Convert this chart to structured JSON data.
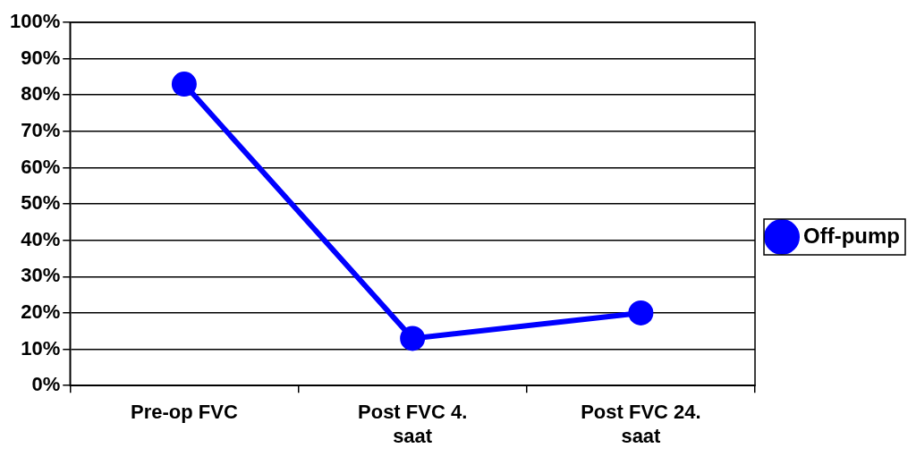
{
  "chart_data": {
    "type": "line",
    "categories": [
      "Pre-op FVC",
      "Post FVC 4. saat",
      "Post FVC 24. saat"
    ],
    "series": [
      {
        "name": "Off-pump",
        "color": "#0000ff",
        "values": [
          83,
          13,
          20
        ]
      }
    ],
    "ylim": [
      0,
      100
    ],
    "yticks": [
      {
        "value": 0,
        "label": "0%"
      },
      {
        "value": 10,
        "label": "10%"
      },
      {
        "value": 20,
        "label": "20%"
      },
      {
        "value": 30,
        "label": "30%"
      },
      {
        "value": 40,
        "label": "40%"
      },
      {
        "value": 50,
        "label": "50%"
      },
      {
        "value": 60,
        "label": "60%"
      },
      {
        "value": 70,
        "label": "70%"
      },
      {
        "value": 80,
        "label": "80%"
      },
      {
        "value": 90,
        "label": "90%"
      },
      {
        "value": 100,
        "label": "100%"
      }
    ],
    "grid": "y",
    "legend": "right",
    "marker": "circle",
    "line_style": "solid"
  }
}
